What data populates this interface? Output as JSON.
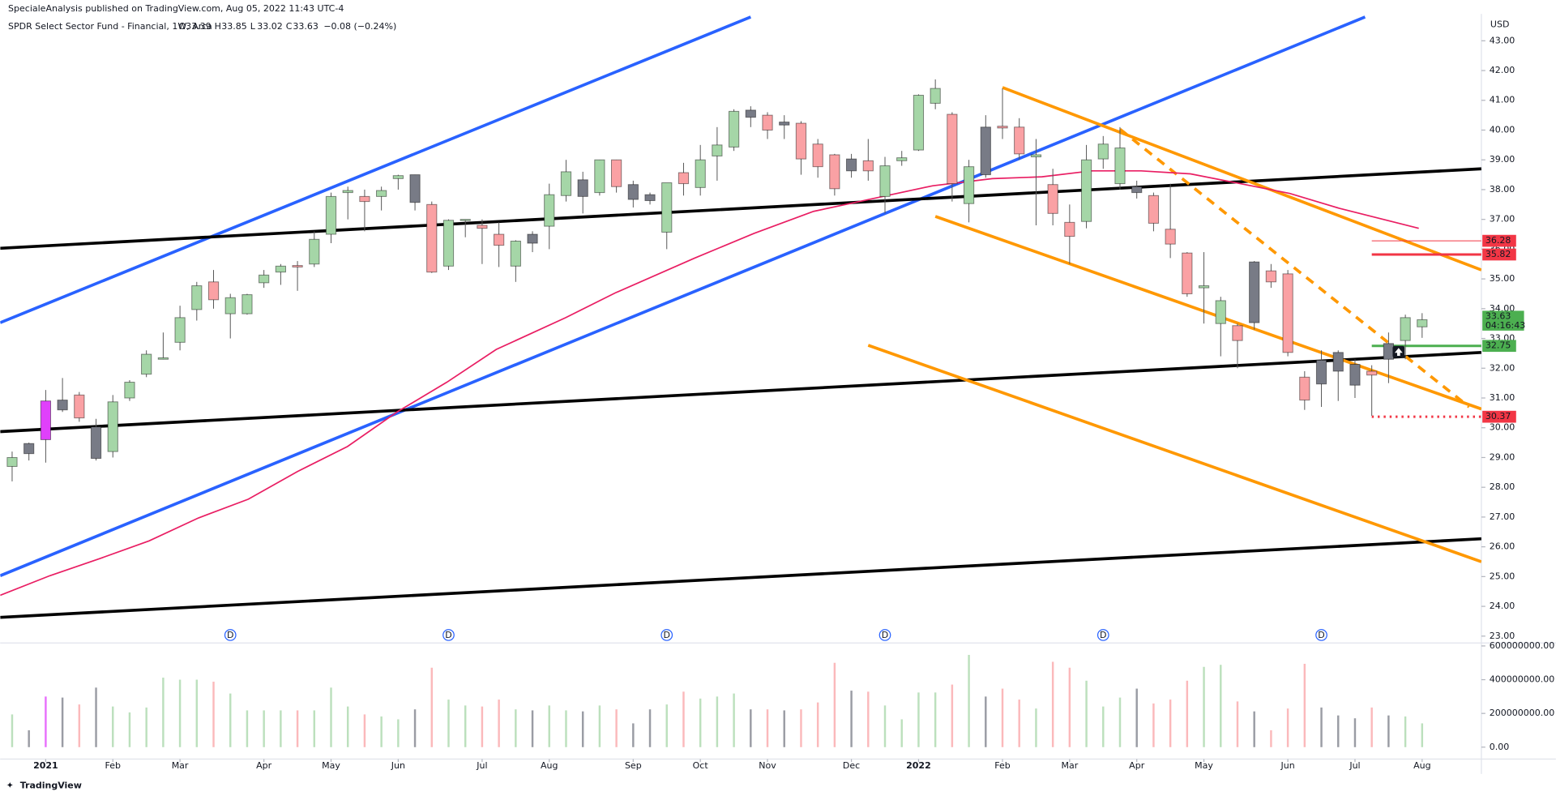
{
  "chart_data": {
    "type": "candlestick",
    "header": "SpecialeAnalysis published on TradingView.com, Aug 05, 2022 11:43 UTC-4",
    "symbol": "SPDR Select Sector Fund - Financial, 1W, Arca",
    "ohlc_letters": [
      "O",
      "H",
      "L",
      "C"
    ],
    "change": "−0.08 (−0.24%)",
    "currency": "USD",
    "countdown": "04:16:43",
    "footer": "TradingView",
    "xlim": [
      -0.71,
      87.53
    ],
    "ylim": [
      22.77,
      43.87
    ],
    "open": [
      28.7,
      29.13,
      29.6,
      30.6,
      31.1,
      30.03,
      29.2,
      31.0,
      31.8,
      32.3,
      32.87,
      33.97,
      34.9,
      33.83,
      33.83,
      34.87,
      35.23,
      35.45,
      35.5,
      36.5,
      37.9,
      37.77,
      37.77,
      38.37,
      38.5,
      37.5,
      35.43,
      36.97,
      36.8,
      36.5,
      35.43,
      36.5,
      36.77,
      37.8,
      38.33,
      37.9,
      39.0,
      38.17,
      37.83,
      36.57,
      38.57,
      38.07,
      39.13,
      39.43,
      40.67,
      40.5,
      40.27,
      40.23,
      39.53,
      39.17,
      39.03,
      38.97,
      37.77,
      38.97,
      39.33,
      40.9,
      40.53,
      37.53,
      38.5,
      40.13,
      40.1,
      39.1,
      38.17,
      36.9,
      36.93,
      39.03,
      38.2,
      38.1,
      37.8,
      36.67,
      35.87,
      34.7,
      33.5,
      33.43,
      33.53,
      35.27,
      35.17,
      31.7,
      31.47,
      32.53,
      32.13,
      31.9,
      32.3,
      32.93,
      33.39
    ],
    "high": [
      29.2,
      29.5,
      31.27,
      31.67,
      31.2,
      30.3,
      31.1,
      31.6,
      32.6,
      33.2,
      34.1,
      34.9,
      35.3,
      34.5,
      34.5,
      35.3,
      35.5,
      35.6,
      36.6,
      37.9,
      38.1,
      38.0,
      38.1,
      38.5,
      38.5,
      37.6,
      37.0,
      37.0,
      37.0,
      36.9,
      36.3,
      36.6,
      38.2,
      39.0,
      38.6,
      39.0,
      39.0,
      38.3,
      37.9,
      38.2,
      38.9,
      39.5,
      40.1,
      40.7,
      40.8,
      40.6,
      40.5,
      40.3,
      39.7,
      39.2,
      39.2,
      39.7,
      39.1,
      39.3,
      41.2,
      41.7,
      40.6,
      39.0,
      40.5,
      41.4,
      40.4,
      39.7,
      38.7,
      37.5,
      39.5,
      39.8,
      40.1,
      38.3,
      37.9,
      38.2,
      35.9,
      35.9,
      34.4,
      33.5,
      35.6,
      35.5,
      35.3,
      31.9,
      32.6,
      32.6,
      32.3,
      32.1,
      33.2,
      33.8,
      33.85
    ],
    "low": [
      28.2,
      28.9,
      28.83,
      30.53,
      30.2,
      28.9,
      29.0,
      30.9,
      31.7,
      32.3,
      32.6,
      33.6,
      34.0,
      33.0,
      33.8,
      34.7,
      34.8,
      34.6,
      35.4,
      36.2,
      37.0,
      36.6,
      37.3,
      38.0,
      37.3,
      35.2,
      35.3,
      36.4,
      35.5,
      35.4,
      34.9,
      35.9,
      36.0,
      37.6,
      37.2,
      37.8,
      37.9,
      37.4,
      37.5,
      36.0,
      37.8,
      37.8,
      38.3,
      39.3,
      40.1,
      39.7,
      39.7,
      38.5,
      38.4,
      37.8,
      38.4,
      38.3,
      37.2,
      38.8,
      39.3,
      40.7,
      37.6,
      36.9,
      38.4,
      39.7,
      39.0,
      36.8,
      36.8,
      35.5,
      36.7,
      38.7,
      38.0,
      37.7,
      36.6,
      35.7,
      34.4,
      33.5,
      32.4,
      32.0,
      33.3,
      34.7,
      32.4,
      30.6,
      30.7,
      30.9,
      31.0,
      30.4,
      31.5,
      32.3,
      33.02
    ],
    "close": [
      29.0,
      29.47,
      30.9,
      30.93,
      30.33,
      28.97,
      30.87,
      31.53,
      32.47,
      32.35,
      33.7,
      34.77,
      34.3,
      34.37,
      34.47,
      35.13,
      35.43,
      35.4,
      36.33,
      37.77,
      37.97,
      37.6,
      37.97,
      38.47,
      37.57,
      35.23,
      36.97,
      37.0,
      36.7,
      36.13,
      36.27,
      36.2,
      37.83,
      38.6,
      37.77,
      39.0,
      38.1,
      37.67,
      37.63,
      38.23,
      38.2,
      39.0,
      39.5,
      40.63,
      40.43,
      40.0,
      40.17,
      39.03,
      38.77,
      38.03,
      38.63,
      38.63,
      38.8,
      39.07,
      41.17,
      41.4,
      38.2,
      38.77,
      40.1,
      40.07,
      39.2,
      39.17,
      37.2,
      36.43,
      39.0,
      39.53,
      39.4,
      37.9,
      36.87,
      36.17,
      34.5,
      34.77,
      34.27,
      32.93,
      35.57,
      34.9,
      32.53,
      30.93,
      32.27,
      31.9,
      31.43,
      31.77,
      32.83,
      33.7,
      33.63
    ],
    "colors": [
      "#a5d6a7",
      "#787b86",
      "#e040fb",
      "#787b86",
      "#faa1a4",
      "#787b86",
      "#a5d6a7",
      "#a5d6a7",
      "#a5d6a7",
      "#a5d6a7",
      "#a5d6a7",
      "#a5d6a7",
      "#faa1a4",
      "#a5d6a7",
      "#a5d6a7",
      "#a5d6a7",
      "#a5d6a7",
      "#faa1a4",
      "#a5d6a7",
      "#a5d6a7",
      "#a5d6a7",
      "#faa1a4",
      "#a5d6a7",
      "#a5d6a7",
      "#787b86",
      "#faa1a4",
      "#a5d6a7",
      "#a5d6a7",
      "#faa1a4",
      "#faa1a4",
      "#a5d6a7",
      "#787b86",
      "#a5d6a7",
      "#a5d6a7",
      "#787b86",
      "#a5d6a7",
      "#faa1a4",
      "#787b86",
      "#787b86",
      "#a5d6a7",
      "#faa1a4",
      "#a5d6a7",
      "#a5d6a7",
      "#a5d6a7",
      "#787b86",
      "#faa1a4",
      "#787b86",
      "#faa1a4",
      "#faa1a4",
      "#faa1a4",
      "#787b86",
      "#faa1a4",
      "#a5d6a7",
      "#a5d6a7",
      "#a5d6a7",
      "#a5d6a7",
      "#faa1a4",
      "#a5d6a7",
      "#787b86",
      "#faa1a4",
      "#faa1a4",
      "#a5d6a7",
      "#faa1a4",
      "#faa1a4",
      "#a5d6a7",
      "#a5d6a7",
      "#a5d6a7",
      "#787b86",
      "#faa1a4",
      "#faa1a4",
      "#faa1a4",
      "#a5d6a7",
      "#a5d6a7",
      "#faa1a4",
      "#787b86",
      "#faa1a4",
      "#faa1a4",
      "#faa1a4",
      "#787b86",
      "#787b86",
      "#787b86",
      "#faa1a4",
      "#787b86",
      "#a5d6a7",
      "#a5d6a7"
    ],
    "volume": [
      194000000,
      100000000,
      300000000,
      294000000,
      253000000,
      353000000,
      241000000,
      206000000,
      235000000,
      412000000,
      400000000,
      400000000,
      388000000,
      318000000,
      218000000,
      218000000,
      218000000,
      218000000,
      218000000,
      353000000,
      241000000,
      194000000,
      182000000,
      165000000,
      224000000,
      471000000,
      282000000,
      247000000,
      241000000,
      282000000,
      224000000,
      218000000,
      247000000,
      218000000,
      212000000,
      247000000,
      224000000,
      141000000,
      224000000,
      253000000,
      329000000,
      288000000,
      300000000,
      318000000,
      224000000,
      224000000,
      218000000,
      224000000,
      265000000,
      500000000,
      335000000,
      329000000,
      247000000,
      165000000,
      324000000,
      324000000,
      371000000,
      547000000,
      300000000,
      347000000,
      282000000,
      229000000,
      506000000,
      471000000,
      394000000,
      241000000,
      294000000,
      347000000,
      259000000,
      282000000,
      394000000,
      476000000,
      488000000,
      271000000,
      212000000,
      100000000,
      229000000,
      494000000,
      235000000,
      188000000,
      171000000,
      235000000,
      188000000,
      182000000,
      141000000
    ],
    "volume_ylim": [
      0,
      600000000
    ],
    "volume_ticks": [
      {
        "value": 0,
        "label": "0.00"
      },
      {
        "value": 200000000,
        "label": "200000000.00"
      },
      {
        "value": 400000000,
        "label": "400000000.00"
      },
      {
        "value": 600000000,
        "label": "600000000.00"
      }
    ],
    "yticks": [
      {
        "value": 23,
        "label": "23.00"
      },
      {
        "value": 24,
        "label": "24.00"
      },
      {
        "value": 25,
        "label": "25.00"
      },
      {
        "value": 26,
        "label": "26.00"
      },
      {
        "value": 27,
        "label": "27.00"
      },
      {
        "value": 28,
        "label": "28.00"
      },
      {
        "value": 29,
        "label": "29.00"
      },
      {
        "value": 30,
        "label": "30.00"
      },
      {
        "value": 31,
        "label": "31.00"
      },
      {
        "value": 32,
        "label": "32.00"
      },
      {
        "value": 33,
        "label": "33.00"
      },
      {
        "value": 34,
        "label": "34.00"
      },
      {
        "value": 35,
        "label": "35.00"
      },
      {
        "value": 36,
        "label": "36.00"
      },
      {
        "value": 37,
        "label": "37.00"
      },
      {
        "value": 38,
        "label": "38.00"
      },
      {
        "value": 39,
        "label": "39.00"
      },
      {
        "value": 40,
        "label": "40.00"
      },
      {
        "value": 41,
        "label": "41.00"
      },
      {
        "value": 42,
        "label": "42.00"
      },
      {
        "value": 43,
        "label": "43.00"
      }
    ],
    "xticks": [
      {
        "value": 2,
        "label": "2021"
      },
      {
        "value": 6,
        "label": "Feb"
      },
      {
        "value": 10,
        "label": "Mar"
      },
      {
        "value": 15,
        "label": "Apr"
      },
      {
        "value": 19,
        "label": "May"
      },
      {
        "value": 23,
        "label": "Jun"
      },
      {
        "value": 28,
        "label": "Jul"
      },
      {
        "value": 32,
        "label": "Aug"
      },
      {
        "value": 37,
        "label": "Sep"
      },
      {
        "value": 41,
        "label": "Oct"
      },
      {
        "value": 45,
        "label": "Nov"
      },
      {
        "value": 50,
        "label": "Dec"
      },
      {
        "value": 54,
        "label": "2022"
      },
      {
        "value": 59,
        "label": "Feb"
      },
      {
        "value": 63,
        "label": "Mar"
      },
      {
        "value": 67,
        "label": "Apr"
      },
      {
        "value": 71,
        "label": "May"
      },
      {
        "value": 76,
        "label": "Jun"
      },
      {
        "value": 80,
        "label": "Jul"
      },
      {
        "value": 84,
        "label": "Aug"
      }
    ],
    "dividends": {
      "label": "D",
      "at": [
        13,
        26,
        39,
        52,
        65,
        78
      ]
    },
    "moving_average": {
      "color": "#e91e63",
      "x": [
        -0.71,
        2.25,
        5.2,
        8.16,
        11.1,
        14.07,
        17.0,
        19.98,
        22.93,
        25.9,
        28.84,
        32.98,
        35.93,
        40.66,
        44.2,
        47.75,
        51.3,
        54.85,
        58.4,
        61.35,
        64.3,
        67.26,
        70.2,
        73.17,
        76.12,
        79.08,
        83.8
      ],
      "values": [
        24.37,
        25.03,
        25.6,
        26.2,
        26.97,
        27.6,
        28.53,
        29.37,
        30.53,
        31.53,
        32.63,
        33.7,
        34.53,
        35.7,
        36.53,
        37.27,
        37.7,
        38.13,
        38.37,
        38.43,
        38.63,
        38.63,
        38.53,
        38.2,
        37.87,
        37.37,
        36.7
      ]
    },
    "lines": [
      {
        "color": "#2962ff",
        "width": 3,
        "dash": false,
        "points": [
          [
            -0.71,
            33.53
          ],
          [
            44.0,
            43.8
          ]
        ]
      },
      {
        "color": "#2962ff",
        "width": 3,
        "dash": false,
        "points": [
          [
            -0.71,
            25.03
          ],
          [
            80.6,
            43.8
          ]
        ]
      },
      {
        "color": "#000000",
        "width": 3,
        "dash": false,
        "points": [
          [
            -0.71,
            36.03
          ],
          [
            87.53,
            38.7
          ]
        ]
      },
      {
        "color": "#000000",
        "width": 3,
        "dash": false,
        "points": [
          [
            -0.71,
            29.87
          ],
          [
            87.53,
            32.53
          ]
        ]
      },
      {
        "color": "#000000",
        "width": 3,
        "dash": false,
        "points": [
          [
            -0.71,
            23.63
          ],
          [
            87.53,
            26.27
          ]
        ]
      },
      {
        "color": "#ff9800",
        "width": 3,
        "dash": false,
        "points": [
          [
            59.0,
            41.43
          ],
          [
            87.53,
            35.3
          ]
        ]
      },
      {
        "color": "#ff9800",
        "width": 3,
        "dash": false,
        "points": [
          [
            55.0,
            37.1
          ],
          [
            87.53,
            30.63
          ]
        ]
      },
      {
        "color": "#ff9800",
        "width": 3,
        "dash": false,
        "points": [
          [
            51.0,
            32.77
          ],
          [
            87.53,
            25.5
          ]
        ]
      },
      {
        "color": "#ff9800",
        "width": 3,
        "dash": true,
        "points": [
          [
            66.0,
            40.03
          ],
          [
            86.8,
            30.7
          ]
        ]
      }
    ],
    "levels": [
      {
        "value": 36.28,
        "color": "#f23645",
        "width": 0.8,
        "dash": false,
        "start": 81
      },
      {
        "value": 35.82,
        "color": "#f23645",
        "width": 2.5,
        "dash": false,
        "start": 81
      },
      {
        "value": 32.75,
        "color": "#4caf50",
        "width": 2.5,
        "dash": false,
        "start": 81
      },
      {
        "value": 30.37,
        "color": "#f23645",
        "width": 2.5,
        "dash": true,
        "start": 81
      }
    ],
    "marker": {
      "x": 82.6,
      "y": 32.55
    }
  }
}
